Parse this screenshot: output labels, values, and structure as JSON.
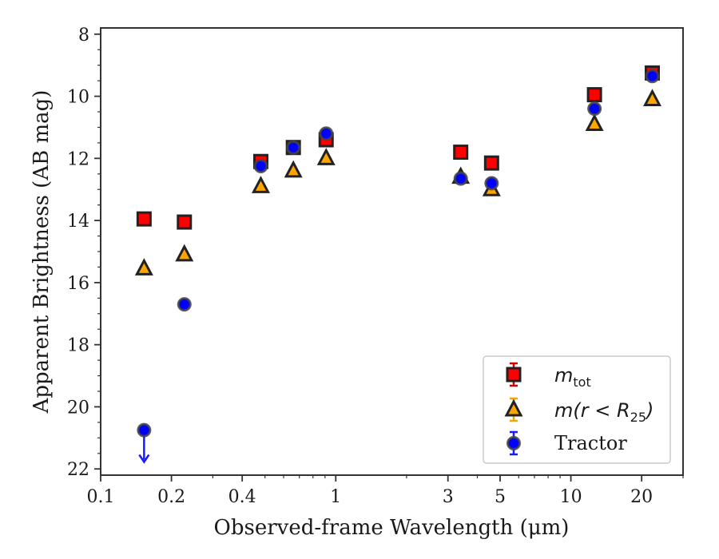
{
  "chart_data": {
    "type": "scatter",
    "xlabel": "Observed-frame Wavelength (μm)",
    "ylabel": "Apparent Brightness (AB mag)",
    "x_scale": "log",
    "xlim": [
      0.1,
      30
    ],
    "ylim": [
      22.2,
      7.8
    ],
    "y_inverted": true,
    "x_ticks": [
      {
        "value": 0.1,
        "label": "0.1"
      },
      {
        "value": 0.2,
        "label": "0.2"
      },
      {
        "value": 0.4,
        "label": "0.4"
      },
      {
        "value": 1,
        "label": "1"
      },
      {
        "value": 3,
        "label": "3"
      },
      {
        "value": 5,
        "label": "5"
      },
      {
        "value": 10,
        "label": "10"
      },
      {
        "value": 20,
        "label": "20"
      }
    ],
    "y_ticks": [
      8,
      10,
      12,
      14,
      16,
      18,
      20,
      22
    ],
    "grid": false,
    "legend_position": "bottom-right",
    "series": [
      {
        "name": "m_tot",
        "legend_main": "m",
        "legend_sub": "tot",
        "marker": "square",
        "color": "#ff0000",
        "edge_color": "#222222",
        "points": [
          {
            "x": 0.153,
            "y": 13.95
          },
          {
            "x": 0.227,
            "y": 14.05
          },
          {
            "x": 0.48,
            "y": 12.1
          },
          {
            "x": 0.66,
            "y": 11.65
          },
          {
            "x": 0.91,
            "y": 11.4
          },
          {
            "x": 3.4,
            "y": 11.8
          },
          {
            "x": 4.6,
            "y": 12.15
          },
          {
            "x": 12.6,
            "y": 9.95
          },
          {
            "x": 22.2,
            "y": 9.25
          }
        ]
      },
      {
        "name": "m(r < R25)",
        "legend_main": "m(r < R",
        "legend_sub": "25",
        "legend_tail": ")",
        "marker": "triangle",
        "color": "#ffa500",
        "edge_color": "#222222",
        "points": [
          {
            "x": 0.153,
            "y": 15.55
          },
          {
            "x": 0.227,
            "y": 15.1
          },
          {
            "x": 0.48,
            "y": 12.9
          },
          {
            "x": 0.66,
            "y": 12.4
          },
          {
            "x": 0.91,
            "y": 12.0
          },
          {
            "x": 3.4,
            "y": 12.6
          },
          {
            "x": 4.6,
            "y": 13.0
          },
          {
            "x": 12.6,
            "y": 10.9
          },
          {
            "x": 22.2,
            "y": 10.1
          }
        ]
      },
      {
        "name": "Tractor",
        "marker": "circle",
        "color": "#0000ff",
        "edge_color": "#444444",
        "points": [
          {
            "x": 0.153,
            "y": 20.75,
            "upper_limit": true
          },
          {
            "x": 0.227,
            "y": 16.7
          },
          {
            "x": 0.48,
            "y": 12.25
          },
          {
            "x": 0.66,
            "y": 11.65
          },
          {
            "x": 0.91,
            "y": 11.2
          },
          {
            "x": 3.4,
            "y": 12.65
          },
          {
            "x": 4.6,
            "y": 12.8
          },
          {
            "x": 12.6,
            "y": 10.4
          },
          {
            "x": 22.2,
            "y": 9.35
          }
        ]
      }
    ],
    "legend": [
      {
        "text": "Tractor"
      }
    ]
  }
}
